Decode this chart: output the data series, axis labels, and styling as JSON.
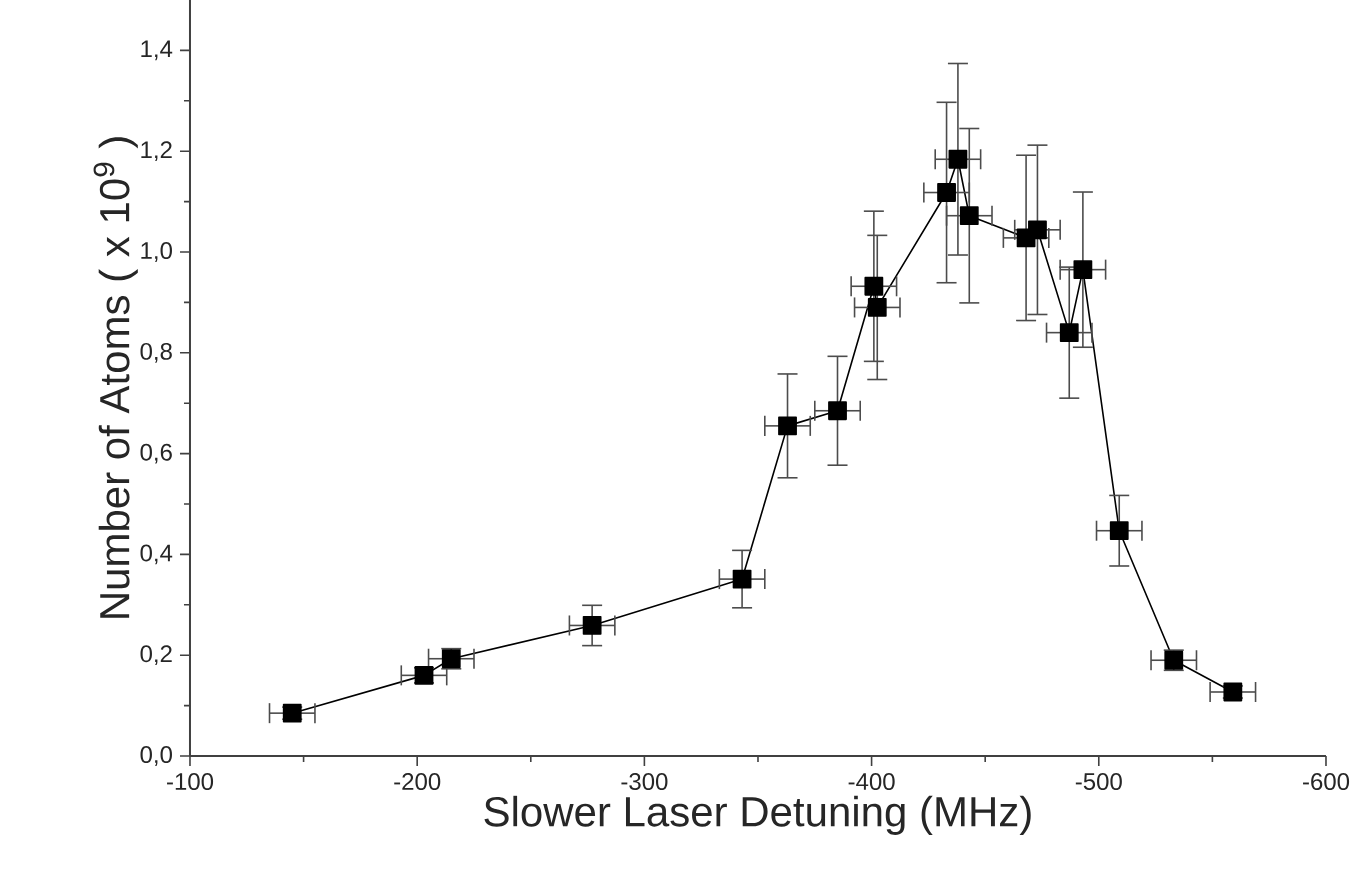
{
  "chart_data": {
    "type": "line",
    "xlabel": "Slower Laser Detuning (MHz)",
    "ylabel": "Number of Atoms ( x 10$^{9}$ )",
    "x": [
      -145,
      -203,
      -215,
      -277,
      -343,
      -363,
      -385,
      -401,
      -402.5,
      -433,
      -438,
      -443,
      -468,
      -473,
      -487,
      -493,
      -509,
      -533,
      -559
    ],
    "values": [
      0.085,
      0.16,
      0.193,
      0.259,
      0.351,
      0.655,
      0.685,
      0.932,
      0.89,
      1.118,
      1.184,
      1.072,
      1.028,
      1.044,
      0.84,
      0.965,
      0.447,
      0.19,
      0.127
    ],
    "errors": [
      0.012,
      0.015,
      0.02,
      0.04,
      0.057,
      0.103,
      0.108,
      0.149,
      0.143,
      0.179,
      0.19,
      0.173,
      0.164,
      0.168,
      0.13,
      0.154,
      0.07,
      0.02,
      0.012
    ],
    "xerrors": [
      10,
      10,
      10,
      10,
      10,
      10,
      10,
      10,
      10,
      10,
      10,
      10,
      10,
      10,
      10,
      10,
      10,
      10,
      10
    ],
    "color": "#000000",
    "marker": "square",
    "line_style": "solid",
    "xlim": [
      -100,
      -600
    ],
    "xticks": [
      -100,
      -200,
      -300,
      -400,
      -500,
      -600
    ],
    "ylim": [
      0,
      1.5
    ],
    "yticks": [
      {
        "value": 0,
        "label": "0,0"
      },
      {
        "value": 0.2,
        "label": "0,2"
      },
      {
        "value": 0.4,
        "label": "0,4"
      },
      {
        "value": 0.6,
        "label": "0,6"
      },
      {
        "value": 0.8,
        "label": "0,8"
      },
      {
        "value": 1.0,
        "label": "1,0"
      },
      {
        "value": 1.2,
        "label": "1,2"
      },
      {
        "value": 1.4,
        "label": "1,4"
      }
    ]
  }
}
